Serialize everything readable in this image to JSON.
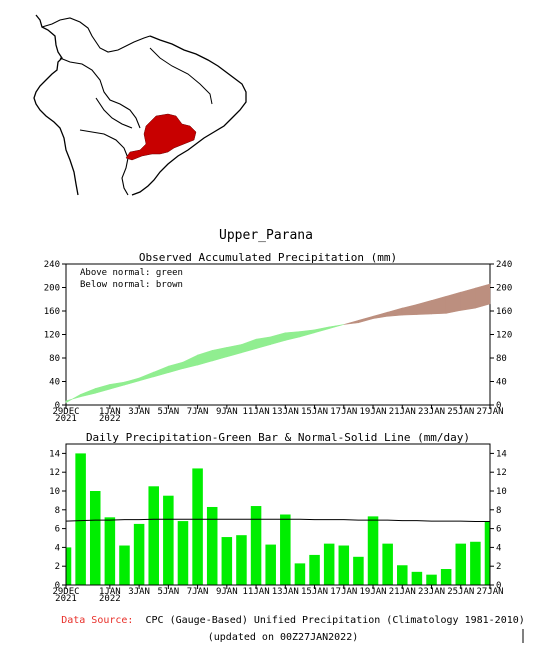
{
  "region_name": "Upper_Parana",
  "chart_data": [
    {
      "type": "area",
      "title": "Observed Accumulated Precipitation (mm)",
      "legend": [
        "Above normal: green",
        "Below normal: brown"
      ],
      "colors": {
        "above": "#90ee90",
        "below": "#bc8f7f"
      },
      "ylim": [
        0,
        240
      ],
      "yticks": [
        0,
        40,
        80,
        120,
        160,
        200,
        240
      ],
      "xlim": [
        "2021-12-29",
        "2022-01-27"
      ],
      "xticks": [
        {
          "date": "2021-12-29",
          "label": "29DEC",
          "year": "2021"
        },
        {
          "date": "2022-01-01",
          "label": "1JAN",
          "year": "2022"
        },
        {
          "date": "2022-01-03",
          "label": "3JAN"
        },
        {
          "date": "2022-01-05",
          "label": "5JAN"
        },
        {
          "date": "2022-01-07",
          "label": "7JAN"
        },
        {
          "date": "2022-01-09",
          "label": "9JAN"
        },
        {
          "date": "2022-01-11",
          "label": "11JAN"
        },
        {
          "date": "2022-01-13",
          "label": "13JAN"
        },
        {
          "date": "2022-01-15",
          "label": "15JAN"
        },
        {
          "date": "2022-01-17",
          "label": "17JAN"
        },
        {
          "date": "2022-01-19",
          "label": "19JAN"
        },
        {
          "date": "2022-01-21",
          "label": "21JAN"
        },
        {
          "date": "2022-01-23",
          "label": "23JAN"
        },
        {
          "date": "2022-01-25",
          "label": "25JAN"
        },
        {
          "date": "2022-01-27",
          "label": "27JAN"
        }
      ],
      "x": [
        "2021-12-29",
        "2021-12-30",
        "2021-12-31",
        "2022-01-01",
        "2022-01-02",
        "2022-01-03",
        "2022-01-04",
        "2022-01-05",
        "2022-01-06",
        "2022-01-07",
        "2022-01-08",
        "2022-01-09",
        "2022-01-10",
        "2022-01-11",
        "2022-01-12",
        "2022-01-13",
        "2022-01-14",
        "2022-01-15",
        "2022-01-16",
        "2022-01-17",
        "2022-01-18",
        "2022-01-19",
        "2022-01-20",
        "2022-01-21",
        "2022-01-22",
        "2022-01-23",
        "2022-01-24",
        "2022-01-25",
        "2022-01-26",
        "2022-01-27"
      ],
      "observed": [
        4,
        18,
        28,
        35,
        39,
        46,
        56,
        66,
        73,
        85,
        93,
        98,
        103,
        112,
        116,
        123,
        125,
        128,
        133,
        137,
        140,
        147,
        151,
        153,
        154,
        155,
        156,
        161,
        165,
        172
      ],
      "normal": [
        7,
        14,
        20,
        27,
        34,
        41,
        48,
        55,
        62,
        68,
        75,
        82,
        89,
        96,
        103,
        110,
        116,
        123,
        130,
        137,
        144,
        151,
        158,
        165,
        171,
        178,
        185,
        192,
        199,
        206
      ]
    },
    {
      "type": "bar",
      "title": "Daily Precipitation-Green Bar & Normal-Solid Line (mm/day)",
      "colors": {
        "bar": "#00ee00",
        "normal_line": "#000000"
      },
      "ylim": [
        0,
        15
      ],
      "yticks": [
        0,
        2,
        4,
        6,
        8,
        10,
        12,
        14
      ],
      "x": [
        "2021-12-29",
        "2021-12-30",
        "2021-12-31",
        "2022-01-01",
        "2022-01-02",
        "2022-01-03",
        "2022-01-04",
        "2022-01-05",
        "2022-01-06",
        "2022-01-07",
        "2022-01-08",
        "2022-01-09",
        "2022-01-10",
        "2022-01-11",
        "2022-01-12",
        "2022-01-13",
        "2022-01-14",
        "2022-01-15",
        "2022-01-16",
        "2022-01-17",
        "2022-01-18",
        "2022-01-19",
        "2022-01-20",
        "2022-01-21",
        "2022-01-22",
        "2022-01-23",
        "2022-01-24",
        "2022-01-25",
        "2022-01-26",
        "2022-01-27"
      ],
      "values": [
        4.0,
        14.0,
        10.0,
        7.2,
        4.2,
        6.5,
        10.5,
        9.5,
        6.8,
        12.4,
        8.3,
        5.1,
        5.3,
        8.4,
        4.3,
        7.5,
        2.3,
        3.2,
        4.4,
        4.2,
        3.0,
        7.3,
        4.4,
        2.1,
        1.4,
        1.1,
        1.7,
        4.4,
        4.6,
        6.7
      ],
      "normal": [
        6.8,
        6.85,
        6.9,
        6.9,
        6.95,
        6.95,
        7.0,
        7.0,
        7.0,
        7.0,
        7.0,
        7.0,
        7.0,
        7.0,
        7.0,
        7.0,
        7.0,
        6.95,
        6.95,
        6.95,
        6.9,
        6.9,
        6.9,
        6.85,
        6.85,
        6.8,
        6.8,
        6.8,
        6.75,
        6.75
      ]
    }
  ],
  "footer": {
    "source_label": "Data Source:",
    "source_text": "CPC (Gauge-Based) Unified Precipitation (Climatology 1981-2010)",
    "updated": "(updated on 00Z27JAN2022)"
  }
}
